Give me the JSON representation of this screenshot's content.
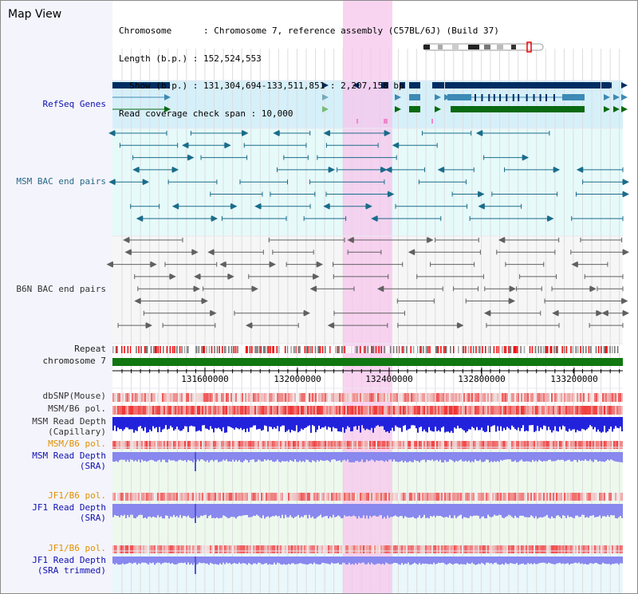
{
  "view": {
    "title": "Map View",
    "info_lines": [
      "Chromosome      : Chromosome 7, reference assembly (C57BL/6J) (Build 37)",
      "Length (b.p.) : 152,524,553",
      "  Show (b.p.) : 131,304,694-133,511,851 : 2,207,158 bp",
      "Read coverage check span : 10,000"
    ]
  },
  "tracks": {
    "refseq": "RefSeq Genes",
    "msm_bac": "MSM BAC end pairs",
    "b6n_bac": "B6N BAC end pairs",
    "repeat": "Repeat",
    "chromosome": "chromosome 7",
    "dbsnp": "dbSNP(Mouse)",
    "msm_b6_pol_1": "MSM/B6 pol.",
    "msm_depth_cap_1": "MSM Read Depth",
    "msm_depth_cap_2": "(Capillary)",
    "msm_b6_pol_2": "MSM/B6 pol.",
    "msm_depth_sra_1": "MSM Read Depth",
    "msm_depth_sra_2": "(SRA)",
    "jf1_b6_pol_1": "JF1/B6 pol.",
    "jf1_depth_sra_1": "JF1 Read Depth",
    "jf1_depth_sra_2": "(SRA)",
    "jf1_b6_pol_2": "JF1/B6 pol.",
    "jf1_depth_trim_1": "JF1 Read Depth",
    "jf1_depth_trim_2": "(SRA trimmed)"
  },
  "axis": {
    "ticks": [
      "131600000",
      "132000000",
      "132400000",
      "132800000",
      "133200000"
    ]
  },
  "colors": {
    "refseq_dark": "#002e62",
    "refseq_mid": "#3d8ab5",
    "refseq_green": "#0a6a12",
    "msm_bac": "#1a6c8a",
    "b6n_bac": "#606060",
    "chromosome": "#117711",
    "highlight": "#f7c6ec",
    "depth_blue": "#2222dd",
    "depth_light": "#8888ee"
  }
}
